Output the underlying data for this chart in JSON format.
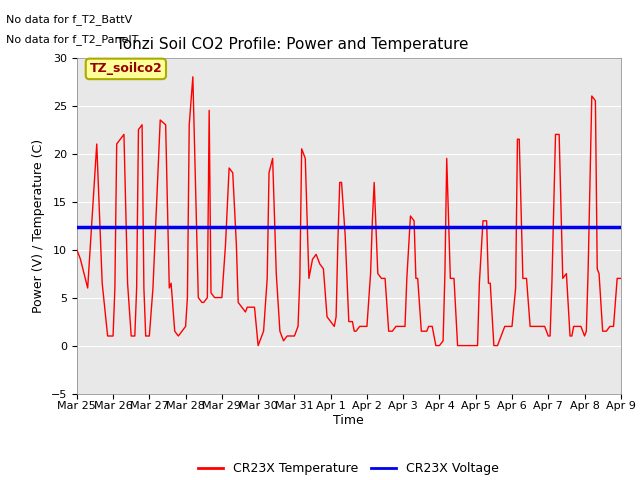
{
  "title": "Tonzi Soil CO2 Profile: Power and Temperature",
  "ylabel": "Power (V) / Temperature (C)",
  "xlabel": "Time",
  "ylim": [
    -5,
    30
  ],
  "yticks": [
    -5,
    0,
    5,
    10,
    15,
    20,
    25,
    30
  ],
  "no_data_text1": "No data for f_T2_BattV",
  "no_data_text2": "No data for f_T2_PanelT",
  "legend_label_red": "CR23X Temperature",
  "legend_label_blue": "CR23X Voltage",
  "box_label": "TZ_soilco2",
  "red_color": "#FF0000",
  "blue_color": "#0000EE",
  "bg_color": "#E8E8E8",
  "box_facecolor": "#FFFF99",
  "box_edgecolor": "#AAAA00",
  "voltage_value": 12.4,
  "x_tick_labels": [
    "Mar 25",
    "Mar 26",
    "Mar 27",
    "Mar 28",
    "Mar 29",
    "Mar 30",
    "Mar 31",
    "Apr 1",
    "Apr 2",
    "Apr 3",
    "Apr 4",
    "Apr 5",
    "Apr 6",
    "Apr 7",
    "Apr 8",
    "Apr 9"
  ],
  "x_tick_positions": [
    0,
    1,
    2,
    3,
    4,
    5,
    6,
    7,
    8,
    9,
    10,
    11,
    12,
    13,
    14,
    15
  ],
  "temp_points_x": [
    0.0,
    0.1,
    0.3,
    0.5,
    0.55,
    0.7,
    0.85,
    0.9,
    1.0,
    1.05,
    1.1,
    1.3,
    1.4,
    1.5,
    1.55,
    1.6,
    1.65,
    1.7,
    1.8,
    1.85,
    1.9,
    2.0,
    2.1,
    2.3,
    2.45,
    2.55,
    2.6,
    2.7,
    2.8,
    2.9,
    3.0,
    3.05,
    3.1,
    3.2,
    3.35,
    3.45,
    3.5,
    3.6,
    3.65,
    3.7,
    3.8,
    3.9,
    4.0,
    4.1,
    4.2,
    4.3,
    4.4,
    4.45,
    4.55,
    4.65,
    4.7,
    4.8,
    4.9,
    5.0,
    5.05,
    5.1,
    5.15,
    5.25,
    5.3,
    5.4,
    5.5,
    5.6,
    5.65,
    5.7,
    5.8,
    5.9,
    6.0,
    6.1,
    6.15,
    6.2,
    6.3,
    6.4,
    6.5,
    6.6,
    6.65,
    6.7,
    6.8,
    6.9,
    7.0,
    7.1,
    7.15,
    7.2,
    7.25,
    7.3,
    7.4,
    7.5,
    7.6,
    7.65,
    7.7,
    7.8,
    7.9,
    8.0,
    8.1,
    8.15,
    8.2,
    8.3,
    8.4,
    8.5,
    8.6,
    8.65,
    8.7,
    8.8,
    8.9,
    9.0,
    9.05,
    9.1,
    9.2,
    9.3,
    9.35,
    9.4,
    9.5,
    9.6,
    9.65,
    9.7,
    9.8,
    9.9,
    10.0,
    10.1,
    10.15,
    10.2,
    10.3,
    10.4,
    10.5,
    10.6,
    10.7,
    10.8,
    10.9,
    11.0,
    11.05,
    11.1,
    11.2,
    11.3,
    11.35,
    11.4,
    11.5,
    11.6,
    11.7,
    11.8,
    11.9,
    12.0,
    12.1,
    12.15,
    12.2,
    12.3,
    12.35,
    12.4,
    12.5,
    12.6,
    12.7,
    12.8,
    12.9,
    13.0,
    13.05,
    13.1,
    13.2,
    13.3,
    13.4,
    13.5,
    13.6,
    13.65,
    13.7,
    13.8,
    13.9,
    14.0,
    14.05,
    14.1,
    14.2,
    14.3,
    14.35,
    14.4,
    14.5,
    14.6,
    14.7,
    14.8,
    14.9,
    15.0
  ],
  "temp_points_y": [
    10.0,
    9.0,
    6.0,
    18.0,
    21.0,
    6.5,
    1.0,
    1.0,
    1.0,
    6.0,
    21.0,
    22.0,
    6.5,
    1.0,
    1.0,
    1.0,
    6.0,
    22.5,
    23.0,
    6.0,
    1.0,
    1.0,
    6.0,
    23.5,
    23.0,
    6.0,
    6.5,
    1.5,
    1.0,
    1.5,
    2.0,
    5.0,
    23.0,
    28.0,
    5.0,
    4.5,
    4.5,
    5.0,
    24.5,
    5.5,
    5.0,
    5.0,
    5.0,
    10.5,
    18.5,
    18.0,
    10.5,
    4.5,
    4.0,
    3.5,
    4.0,
    4.0,
    4.0,
    0.0,
    0.5,
    1.0,
    1.5,
    7.0,
    18.0,
    19.5,
    7.5,
    1.5,
    1.0,
    0.5,
    1.0,
    1.0,
    1.0,
    2.0,
    7.0,
    20.5,
    19.5,
    7.0,
    9.0,
    9.5,
    9.0,
    8.5,
    8.0,
    3.0,
    2.5,
    2.0,
    3.0,
    11.0,
    17.0,
    17.0,
    11.5,
    2.5,
    2.5,
    1.5,
    1.5,
    2.0,
    2.0,
    2.0,
    7.5,
    13.0,
    17.0,
    7.5,
    7.0,
    7.0,
    1.5,
    1.5,
    1.5,
    2.0,
    2.0,
    2.0,
    2.0,
    7.0,
    13.5,
    13.0,
    7.0,
    7.0,
    1.5,
    1.5,
    1.5,
    2.0,
    2.0,
    0.0,
    0.0,
    0.5,
    7.5,
    19.5,
    7.0,
    7.0,
    0.0,
    0.0,
    0.0,
    0.0,
    0.0,
    0.0,
    0.0,
    6.5,
    13.0,
    13.0,
    6.5,
    6.5,
    0.0,
    0.0,
    1.0,
    2.0,
    2.0,
    2.0,
    6.0,
    21.5,
    21.5,
    7.0,
    7.0,
    7.0,
    2.0,
    2.0,
    2.0,
    2.0,
    2.0,
    1.0,
    1.0,
    6.5,
    22.0,
    22.0,
    7.0,
    7.5,
    1.0,
    1.0,
    2.0,
    2.0,
    2.0,
    1.0,
    1.5,
    8.0,
    26.0,
    25.5,
    8.0,
    7.5,
    1.5,
    1.5,
    2.0,
    2.0,
    7.0,
    7.0
  ]
}
